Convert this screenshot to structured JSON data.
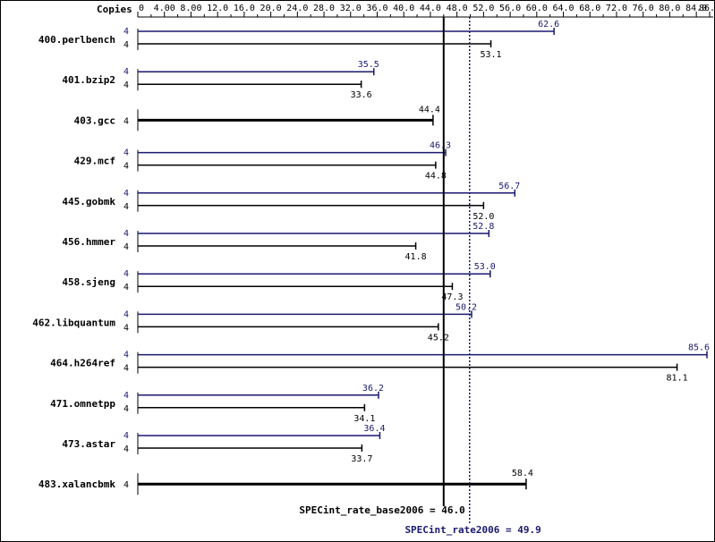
{
  "chart_data": {
    "type": "bar",
    "orientation": "horizontal",
    "copies_header": "Copies",
    "x_ticks": [
      "0",
      "4.00",
      "8.00",
      "12.0",
      "16.0",
      "20.0",
      "24.0",
      "28.0",
      "32.0",
      "36.0",
      "40.0",
      "44.0",
      "48.0",
      "52.0",
      "56.0",
      "60.0",
      "64.0",
      "68.0",
      "72.0",
      "76.0",
      "80.0",
      "84.0",
      "86.0"
    ],
    "x_tick_values": [
      0,
      4,
      8,
      12,
      16,
      20,
      24,
      28,
      32,
      36,
      40,
      44,
      48,
      52,
      56,
      60,
      64,
      68,
      72,
      76,
      80,
      84,
      86
    ],
    "xlim": [
      0,
      86
    ],
    "colors": {
      "peak": "#191970",
      "base": "#000000"
    },
    "benchmarks": [
      {
        "name": "400.perlbench",
        "peak": {
          "copies": "4",
          "value": 62.6,
          "label": "62.6"
        },
        "base": {
          "copies": "4",
          "value": 53.1,
          "label": "53.1"
        }
      },
      {
        "name": "401.bzip2",
        "peak": {
          "copies": "4",
          "value": 35.5,
          "label": "35.5"
        },
        "base": {
          "copies": "4",
          "value": 33.6,
          "label": "33.6"
        }
      },
      {
        "name": "403.gcc",
        "combined": {
          "copies": "4",
          "value": 44.4,
          "label": "44.4"
        }
      },
      {
        "name": "429.mcf",
        "peak": {
          "copies": "4",
          "value": 46.3,
          "label": "46.3"
        },
        "base": {
          "copies": "4",
          "value": 44.8,
          "label": "44.8"
        }
      },
      {
        "name": "445.gobmk",
        "peak": {
          "copies": "4",
          "value": 56.7,
          "label": "56.7"
        },
        "base": {
          "copies": "4",
          "value": 52.0,
          "label": "52.0"
        }
      },
      {
        "name": "456.hmmer",
        "peak": {
          "copies": "4",
          "value": 52.8,
          "label": "52.8"
        },
        "base": {
          "copies": "4",
          "value": 41.8,
          "label": "41.8"
        }
      },
      {
        "name": "458.sjeng",
        "peak": {
          "copies": "4",
          "value": 53.0,
          "label": "53.0"
        },
        "base": {
          "copies": "4",
          "value": 47.3,
          "label": "47.3"
        }
      },
      {
        "name": "462.libquantum",
        "peak": {
          "copies": "4",
          "value": 50.2,
          "label": "50.2"
        },
        "base": {
          "copies": "4",
          "value": 45.2,
          "label": "45.2"
        }
      },
      {
        "name": "464.h264ref",
        "peak": {
          "copies": "4",
          "value": 85.6,
          "label": "85.6"
        },
        "base": {
          "copies": "4",
          "value": 81.1,
          "label": "81.1"
        }
      },
      {
        "name": "471.omnetpp",
        "peak": {
          "copies": "4",
          "value": 36.2,
          "label": "36.2"
        },
        "base": {
          "copies": "4",
          "value": 34.1,
          "label": "34.1"
        }
      },
      {
        "name": "473.astar",
        "peak": {
          "copies": "4",
          "value": 36.4,
          "label": "36.4"
        },
        "base": {
          "copies": "4",
          "value": 33.7,
          "label": "33.7"
        }
      },
      {
        "name": "483.xalancbmk",
        "combined": {
          "copies": "4",
          "value": 58.4,
          "label": "58.4"
        }
      }
    ],
    "base_summary": {
      "value": 46.0,
      "label": "SPECint_rate_base2006 = 46.0"
    },
    "peak_summary": {
      "value": 49.9,
      "label": "SPECint_rate2006 = 49.9"
    }
  }
}
